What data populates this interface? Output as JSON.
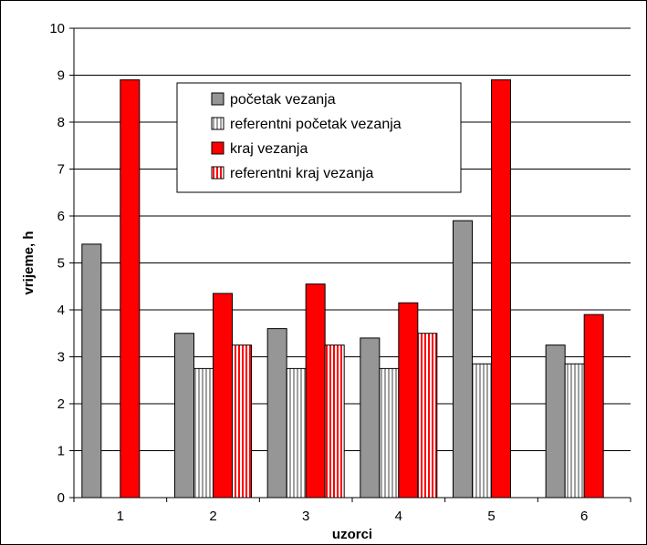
{
  "chart_data": {
    "type": "bar",
    "title": "",
    "xlabel": "uzorci",
    "ylabel": "vrijeme, h",
    "categories": [
      "1",
      "2",
      "3",
      "4",
      "5",
      "6"
    ],
    "ylim": [
      0,
      10
    ],
    "yticks": [
      "0",
      "1",
      "2",
      "3",
      "4",
      "5",
      "6",
      "7",
      "8",
      "9",
      "10"
    ],
    "grid": true,
    "legend_position": "top-center",
    "series": [
      {
        "name": "početak vezanja",
        "color": "#969696",
        "pattern": "solid",
        "values": [
          5.4,
          3.5,
          3.6,
          3.4,
          5.9,
          3.25
        ]
      },
      {
        "name": "referentni početak vezanja",
        "color": "#ffffff",
        "pattern": "gray-vertical-stripes",
        "values": [
          null,
          2.75,
          2.75,
          2.75,
          2.85,
          2.85
        ]
      },
      {
        "name": "kraj vezanja",
        "color": "#ff0000",
        "pattern": "solid",
        "values": [
          8.9,
          4.35,
          4.55,
          4.15,
          8.9,
          3.9
        ]
      },
      {
        "name": "referentni kraj vezanja",
        "color": "#ff0000",
        "pattern": "red-vertical-stripes",
        "values": [
          null,
          3.25,
          3.25,
          3.5,
          null,
          null
        ]
      }
    ]
  }
}
